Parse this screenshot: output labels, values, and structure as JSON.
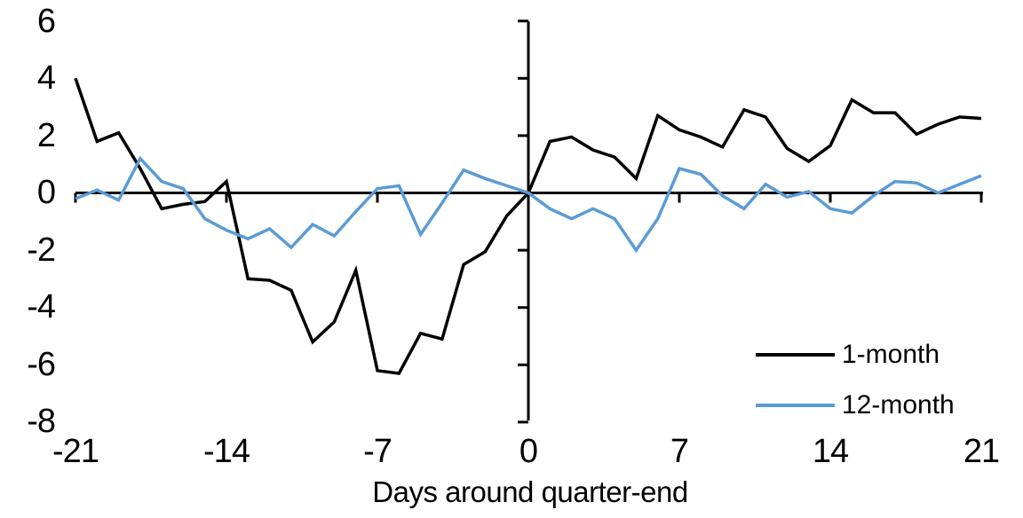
{
  "chart_data": {
    "type": "line",
    "title": "",
    "xlabel": "Days around quarter-end",
    "ylabel": "",
    "xlim": [
      -21,
      21
    ],
    "ylim": [
      -8,
      6
    ],
    "grid": false,
    "legend_position": "lower-right",
    "axis_color": "#000000",
    "x_tick_values": [
      -21,
      -14,
      -7,
      0,
      7,
      14,
      21
    ],
    "x_tick_labels": [
      "-21",
      "-14",
      "-7",
      "0",
      "7",
      "14",
      "21"
    ],
    "y_tick_values": [
      6,
      4,
      2,
      0,
      -2,
      -4,
      -6,
      -8
    ],
    "y_tick_labels": [
      "6",
      "4",
      "2",
      "0",
      "-2",
      "-4",
      "-6",
      "-8"
    ],
    "x": [
      -21,
      -20,
      -19,
      -18,
      -17,
      -16,
      -15,
      -14,
      -13,
      -12,
      -11,
      -10,
      -9,
      -8,
      -7,
      -6,
      -5,
      -4,
      -3,
      -2,
      -1,
      0,
      1,
      2,
      3,
      4,
      5,
      6,
      7,
      8,
      9,
      10,
      11,
      12,
      13,
      14,
      15,
      16,
      17,
      18,
      19,
      20,
      21
    ],
    "series": [
      {
        "name": "1-month",
        "color": "#000000",
        "values": [
          4.0,
          1.8,
          2.1,
          0.85,
          -0.55,
          -0.4,
          -0.3,
          0.4,
          -3.0,
          -3.05,
          -3.4,
          -5.2,
          -4.5,
          -2.7,
          -6.2,
          -6.3,
          -4.9,
          -5.1,
          -2.5,
          -2.05,
          -0.8,
          0.0,
          1.8,
          1.95,
          1.5,
          1.25,
          0.5,
          2.7,
          2.2,
          1.95,
          1.6,
          2.9,
          2.65,
          1.55,
          1.1,
          1.65,
          3.25,
          2.8,
          2.8,
          2.05,
          2.4,
          2.65,
          2.6
        ]
      },
      {
        "name": "12-month",
        "color": "#5B9BD5",
        "values": [
          -0.2,
          0.1,
          -0.25,
          1.2,
          0.4,
          0.15,
          -0.9,
          -1.3,
          -1.6,
          -1.25,
          -1.9,
          -1.1,
          -1.5,
          -0.65,
          0.15,
          0.25,
          -1.45,
          -0.35,
          0.8,
          0.5,
          0.25,
          0.0,
          -0.55,
          -0.9,
          -0.55,
          -0.9,
          -2.0,
          -0.9,
          0.85,
          0.65,
          -0.1,
          -0.55,
          0.3,
          -0.15,
          0.05,
          -0.55,
          -0.7,
          -0.1,
          0.4,
          0.35,
          0.0,
          0.3,
          0.6
        ]
      }
    ]
  }
}
